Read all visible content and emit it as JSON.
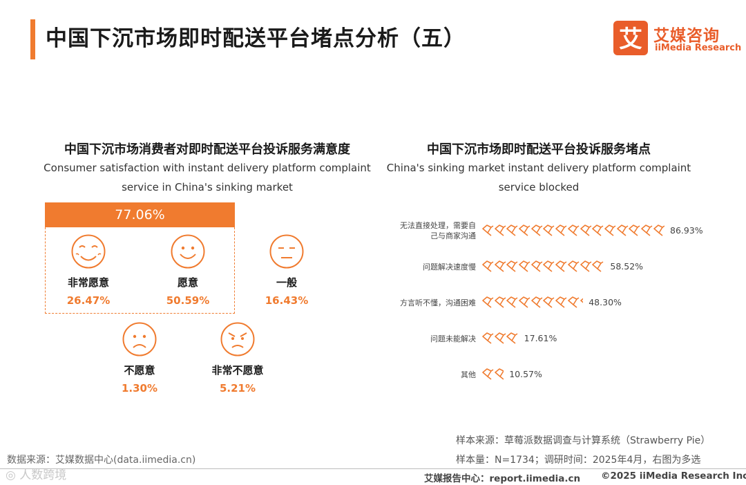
{
  "header": {
    "title": "中国下沉市场即时配送平台堵点分析（五）",
    "logo_cn": "艾媒咨询",
    "logo_en": "iiMedia Research",
    "logo_mark": "艾"
  },
  "colors": {
    "accent": "#f07b2f",
    "logo": "#e95d2a"
  },
  "chart_data": [
    {
      "type": "pictogram",
      "title": "中国下沉市场消费者对即时配送平台投诉服务满意度",
      "subtitle_line1": "Consumer satisfaction with instant delivery platform complaint",
      "subtitle_line2": "service in China's sinking market",
      "group_total_label": "77.06%",
      "categories": [
        "非常愿意",
        "愿意",
        "一般",
        "不愿意",
        "非常不愿意"
      ],
      "values": [
        26.47,
        50.59,
        16.43,
        1.3,
        5.21
      ],
      "value_labels": [
        "26.47%",
        "50.59%",
        "16.43%",
        "1.30%",
        "5.21%"
      ],
      "icons": [
        "laughing-face-icon",
        "smiling-face-icon",
        "neutral-face-icon",
        "frowning-face-icon",
        "angry-face-icon"
      ]
    },
    {
      "type": "bar",
      "title": "中国下沉市场即时配送平台投诉服务堵点",
      "subtitle_line1": "China's sinking market instant delivery platform complaint",
      "subtitle_line2": "service blocked",
      "categories": [
        [
          "无法直接处理，需要自",
          "己与商家沟通"
        ],
        [
          "问题解决速度慢"
        ],
        [
          "方言听不懂，沟通困难"
        ],
        [
          "问题未能解决"
        ],
        [
          "其他"
        ]
      ],
      "values": [
        86.93,
        58.52,
        48.3,
        17.61,
        10.57
      ],
      "value_labels": [
        "86.93%",
        "58.52%",
        "48.30%",
        "17.61%",
        "10.57%"
      ],
      "icon": "complaint-megaphone-icon"
    }
  ],
  "source": {
    "line1": "样本来源：草莓派数据调查与计算系统（Strawberry Pie）",
    "line2": "样本量：N=1734；调研时间：2025年4月，右图为多选",
    "left": "数据来源：艾媒数据中心(data.iimedia.cn)"
  },
  "footer": {
    "watermark": "◎ 人数跨境",
    "site": "艾媒报告中心：report.iimedia.cn",
    "copyright": "©2025  iiMedia Research  Inc"
  }
}
